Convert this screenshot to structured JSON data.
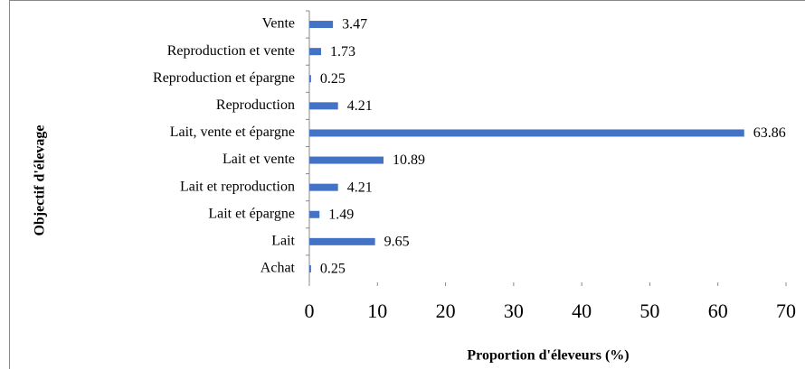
{
  "chart_data": {
    "type": "bar",
    "orientation": "horizontal",
    "categories": [
      "Vente",
      "Reproduction et vente",
      "Reproduction et épargne",
      "Reproduction",
      "Lait, vente et épargne",
      "Lait et vente",
      "Lait et reproduction",
      "Lait et épargne",
      "Lait",
      "Achat"
    ],
    "values": [
      3.47,
      1.73,
      0.25,
      4.21,
      63.86,
      10.89,
      4.21,
      1.49,
      9.65,
      0.25
    ],
    "color": "#4472c4",
    "xlim": [
      0,
      70
    ],
    "xticks": [
      0,
      10,
      20,
      30,
      40,
      50,
      60,
      70
    ],
    "x_label": "Proportion d'éleveurs (%)",
    "y_label": "Objectif d'élevage",
    "grid": false
  }
}
